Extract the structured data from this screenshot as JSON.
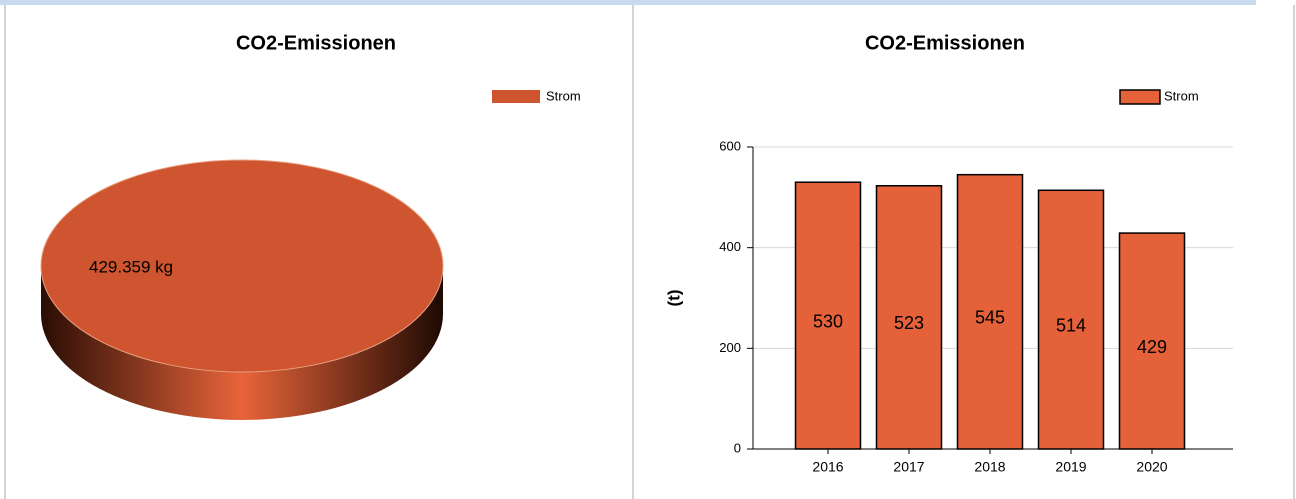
{
  "chart_data": [
    {
      "type": "pie",
      "title": "CO2-Emissionen",
      "categories": [
        "Strom"
      ],
      "values": [
        429359
      ],
      "value_labels": [
        "429.359 kg"
      ],
      "colors": [
        "#cf5530"
      ],
      "legend": "top-right"
    },
    {
      "type": "bar",
      "title": "CO2-Emissionen",
      "ylabel": "(t)",
      "categories": [
        "2016",
        "2017",
        "2018",
        "2019",
        "2020"
      ],
      "series": [
        {
          "name": "Strom",
          "color": "#e4613a",
          "values": [
            530,
            523,
            545,
            514,
            429
          ]
        }
      ],
      "ylim": [
        0,
        600
      ],
      "yticks": [
        0,
        200,
        400,
        600
      ],
      "grid": true,
      "legend": "top-right"
    }
  ]
}
